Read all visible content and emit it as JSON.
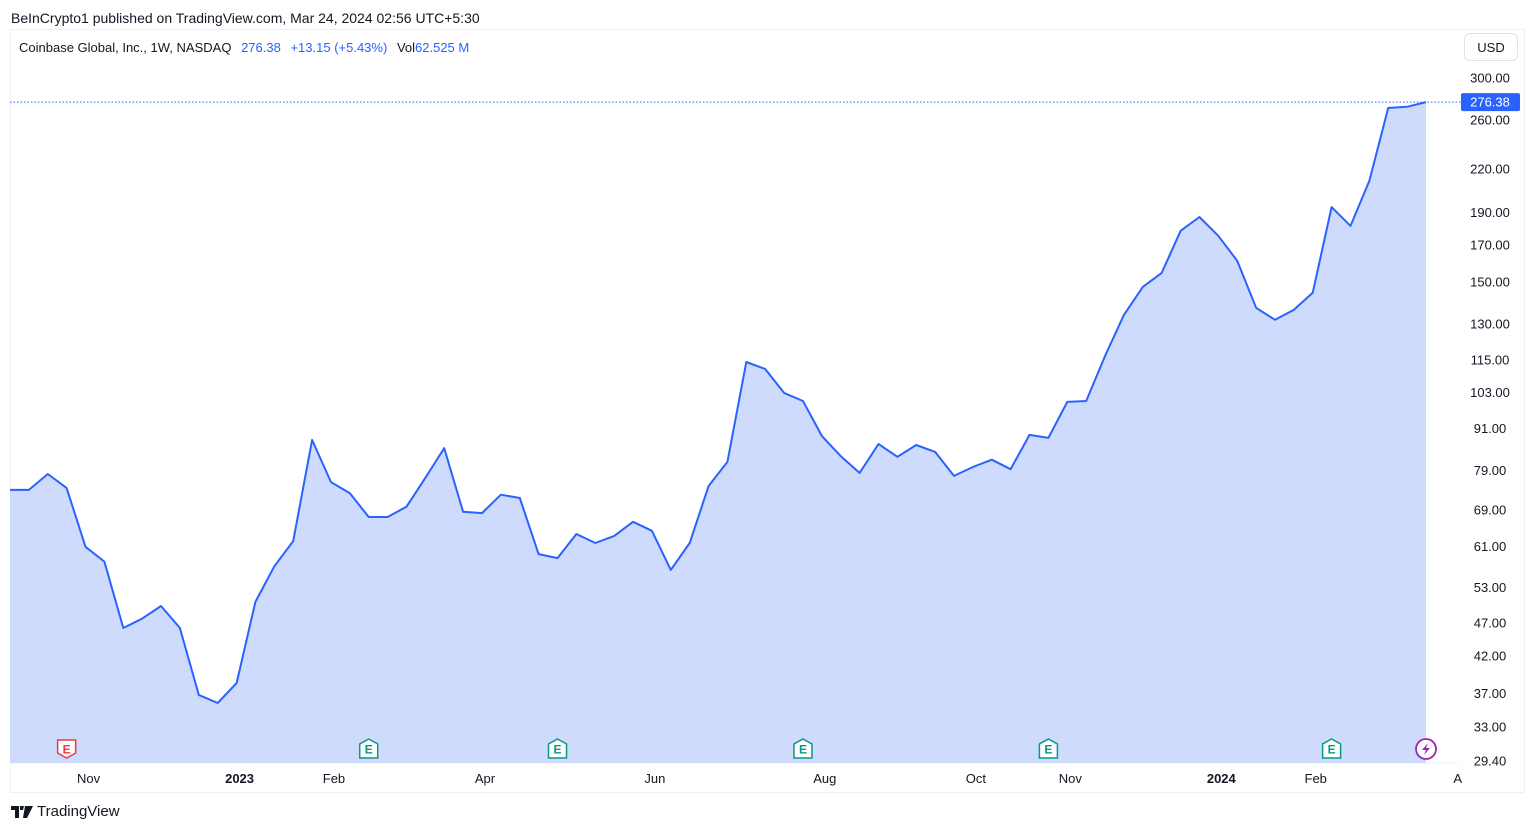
{
  "published": "BeInCrypto1 published on TradingView.com, Mar 24, 2024 02:56 UTC+5:30",
  "legend": {
    "symbol": "Coinbase Global, Inc., 1W, NASDAQ",
    "price": "276.38",
    "change": "+13.15 (+5.43%)",
    "vol_label": "Vol",
    "vol_value": "62.525 M"
  },
  "currency": "USD",
  "footer_brand": "TradingView",
  "chart_data": {
    "type": "area",
    "scale": "log",
    "grid": false,
    "line_color": "#2962ff",
    "fill_color": "#cfdbfd",
    "ylim": [
      29.4,
      300
    ],
    "last_price_label": "276.38",
    "y_tick_labels": [
      "300.00",
      "260.00",
      "220.00",
      "190.00",
      "170.00",
      "150.00",
      "130.00",
      "115.00",
      "103.00",
      "91.00",
      "79.00",
      "69.00",
      "61.00",
      "53.00",
      "47.00",
      "42.00",
      "37.00",
      "33.00",
      "29.40"
    ],
    "x_tick_labels": [
      {
        "label": "Nov",
        "date": "2022-11-07",
        "bold": false
      },
      {
        "label": "2023",
        "date": "2023-01-02",
        "bold": true
      },
      {
        "label": "Feb",
        "date": "2023-02-06",
        "bold": false
      },
      {
        "label": "Apr",
        "date": "2023-04-03",
        "bold": false
      },
      {
        "label": "Jun",
        "date": "2023-06-05",
        "bold": false
      },
      {
        "label": "Aug",
        "date": "2023-08-07",
        "bold": false
      },
      {
        "label": "Oct",
        "date": "2023-10-02",
        "bold": false
      },
      {
        "label": "Nov",
        "date": "2023-11-06",
        "bold": false
      },
      {
        "label": "2024",
        "date": "2024-01-01",
        "bold": true
      },
      {
        "label": "Feb",
        "date": "2024-02-05",
        "bold": false
      },
      {
        "label": "A",
        "date": "2024-04-01",
        "bold": false
      }
    ],
    "x": [
      "2022-10-10",
      "2022-10-17",
      "2022-10-24",
      "2022-10-31",
      "2022-11-07",
      "2022-11-14",
      "2022-11-21",
      "2022-11-28",
      "2022-12-05",
      "2022-12-12",
      "2022-12-19",
      "2022-12-26",
      "2023-01-02",
      "2023-01-09",
      "2023-01-16",
      "2023-01-23",
      "2023-01-30",
      "2023-02-06",
      "2023-02-13",
      "2023-02-20",
      "2023-02-27",
      "2023-03-06",
      "2023-03-13",
      "2023-03-20",
      "2023-03-27",
      "2023-04-03",
      "2023-04-10",
      "2023-04-17",
      "2023-04-24",
      "2023-05-01",
      "2023-05-08",
      "2023-05-15",
      "2023-05-22",
      "2023-05-29",
      "2023-06-05",
      "2023-06-12",
      "2023-06-19",
      "2023-06-26",
      "2023-07-03",
      "2023-07-10",
      "2023-07-17",
      "2023-07-24",
      "2023-07-31",
      "2023-08-07",
      "2023-08-14",
      "2023-08-21",
      "2023-08-28",
      "2023-09-04",
      "2023-09-11",
      "2023-09-18",
      "2023-09-25",
      "2023-10-02",
      "2023-10-09",
      "2023-10-16",
      "2023-10-23",
      "2023-10-30",
      "2023-11-06",
      "2023-11-13",
      "2023-11-20",
      "2023-11-27",
      "2023-12-04",
      "2023-12-11",
      "2023-12-18",
      "2023-12-25",
      "2024-01-01",
      "2024-01-08",
      "2024-01-15",
      "2024-01-22",
      "2024-01-29",
      "2024-02-05",
      "2024-02-12",
      "2024-02-19",
      "2024-02-26",
      "2024-03-04",
      "2024-03-11",
      "2024-03-18"
    ],
    "y": [
      73.9,
      73.9,
      78.0,
      74.4,
      60.9,
      57.9,
      46.2,
      47.7,
      49.8,
      46.2,
      36.8,
      35.8,
      38.3,
      50.5,
      57.0,
      62.1,
      87.6,
      75.9,
      73.1,
      67.4,
      67.4,
      69.8,
      77.0,
      85.2,
      68.6,
      68.3,
      72.7,
      71.9,
      59.4,
      58.6,
      63.6,
      61.7,
      63.2,
      66.3,
      64.3,
      56.3,
      61.7,
      74.9,
      81.3,
      114.2,
      111.5,
      102.8,
      100.0,
      88.8,
      82.9,
      78.3,
      86.4,
      82.7,
      86.1,
      84.1,
      77.5,
      79.9,
      81.9,
      79.3,
      89.1,
      88.2,
      99.7,
      100.0,
      116.5,
      134.0,
      147.4,
      154.6,
      178.4,
      187.0,
      175.4,
      161.1,
      137.3,
      131.8,
      136.3,
      144.5,
      193.4,
      181.4,
      211.5,
      271.0,
      272.0,
      276.38
    ],
    "events": [
      {
        "type": "earnings",
        "label": "E",
        "date": "2022-10-31",
        "color": "#f23645"
      },
      {
        "type": "earnings",
        "label": "E",
        "date": "2023-02-20",
        "color": "#089981"
      },
      {
        "type": "earnings",
        "label": "E",
        "date": "2023-05-01",
        "color": "#089981"
      },
      {
        "type": "earnings",
        "label": "E",
        "date": "2023-07-31",
        "color": "#089981"
      },
      {
        "type": "earnings",
        "label": "E",
        "date": "2023-10-30",
        "color": "#089981"
      },
      {
        "type": "earnings",
        "label": "E",
        "date": "2024-02-12",
        "color": "#089981"
      },
      {
        "type": "lightning",
        "label": "",
        "date": "2024-03-18",
        "color": "#9c27b0"
      }
    ]
  }
}
